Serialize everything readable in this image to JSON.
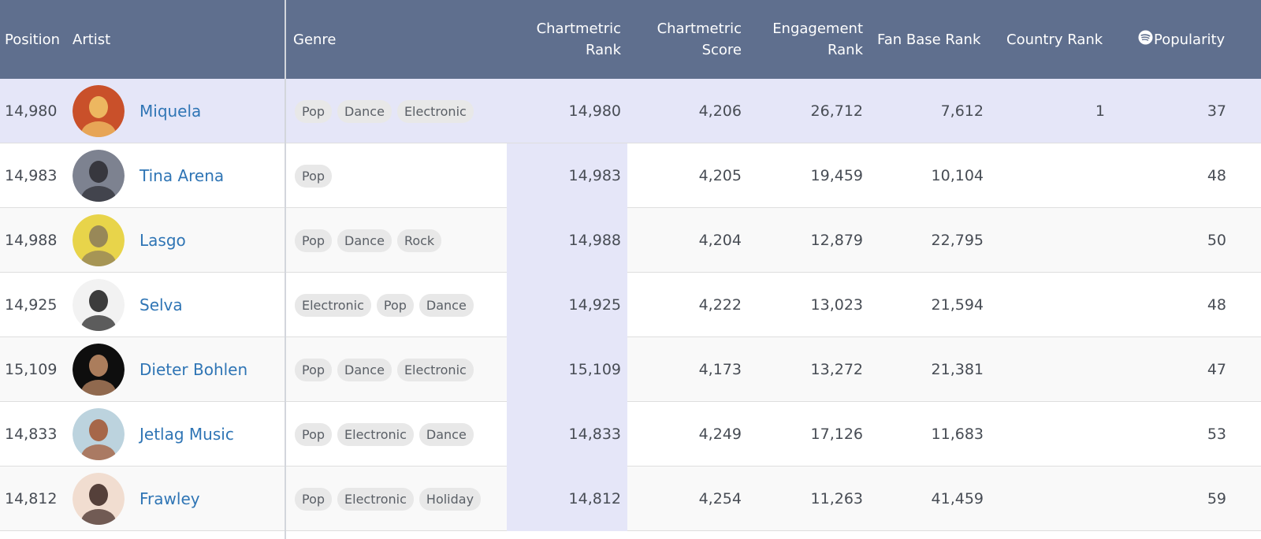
{
  "colors": {
    "header_bg": "#5f6f8e",
    "selected_row": "#e5e6f8",
    "link": "#2f75b5",
    "tag_bg": "#e8e8e8"
  },
  "header": {
    "position": "Position",
    "artist": "Artist",
    "genre": "Genre",
    "cm_rank_1": "Chartmetric",
    "cm_rank_2": "Rank",
    "cm_score_1": "Chartmetric",
    "cm_score_2": "Score",
    "eng_rank_1": "Engagement",
    "eng_rank_2": "Rank",
    "fan_base_rank": "Fan Base Rank",
    "country_rank": "Country Rank",
    "popularity_icon": "spotify-icon",
    "popularity": "Popularity"
  },
  "rows": [
    {
      "position": "14,980",
      "artist": "Miquela",
      "genres": [
        "Pop",
        "Dance",
        "Electronic"
      ],
      "cm_rank": "14,980",
      "cm_score": "4,206",
      "eng_rank": "26,712",
      "fan_base_rank": "7,612",
      "country_rank": "1",
      "popularity": "37",
      "avatar_colors": [
        "#c9502a",
        "#f3c96a"
      ]
    },
    {
      "position": "14,983",
      "artist": "Tina Arena",
      "genres": [
        "Pop"
      ],
      "cm_rank": "14,983",
      "cm_score": "4,205",
      "eng_rank": "19,459",
      "fan_base_rank": "10,104",
      "country_rank": "",
      "popularity": "48",
      "avatar_colors": [
        "#7d8290",
        "#2a2a30"
      ]
    },
    {
      "position": "14,988",
      "artist": "Lasgo",
      "genres": [
        "Pop",
        "Dance",
        "Rock"
      ],
      "cm_rank": "14,988",
      "cm_score": "4,204",
      "eng_rank": "12,879",
      "fan_base_rank": "22,795",
      "country_rank": "",
      "popularity": "50",
      "avatar_colors": [
        "#e8d44a",
        "#8a7a5a"
      ]
    },
    {
      "position": "14,925",
      "artist": "Selva",
      "genres": [
        "Electronic",
        "Pop",
        "Dance"
      ],
      "cm_rank": "14,925",
      "cm_score": "4,222",
      "eng_rank": "13,023",
      "fan_base_rank": "21,594",
      "country_rank": "",
      "popularity": "48",
      "avatar_colors": [
        "#f2f2f2",
        "#1c1c1c"
      ]
    },
    {
      "position": "15,109",
      "artist": "Dieter Bohlen",
      "genres": [
        "Pop",
        "Dance",
        "Electronic"
      ],
      "cm_rank": "15,109",
      "cm_score": "4,173",
      "eng_rank": "13,272",
      "fan_base_rank": "21,381",
      "country_rank": "",
      "popularity": "47",
      "avatar_colors": [
        "#0e0e0e",
        "#c7906a"
      ]
    },
    {
      "position": "14,833",
      "artist": "Jetlag Music",
      "genres": [
        "Pop",
        "Electronic",
        "Dance"
      ],
      "cm_rank": "14,833",
      "cm_score": "4,249",
      "eng_rank": "17,126",
      "fan_base_rank": "11,683",
      "country_rank": "",
      "popularity": "53",
      "avatar_colors": [
        "#bcd3de",
        "#a2542f"
      ]
    },
    {
      "position": "14,812",
      "artist": "Frawley",
      "genres": [
        "Pop",
        "Electronic",
        "Holiday"
      ],
      "cm_rank": "14,812",
      "cm_score": "4,254",
      "eng_rank": "11,263",
      "fan_base_rank": "41,459",
      "country_rank": "",
      "popularity": "59",
      "avatar_colors": [
        "#f1ddd0",
        "#3a2420"
      ]
    }
  ]
}
